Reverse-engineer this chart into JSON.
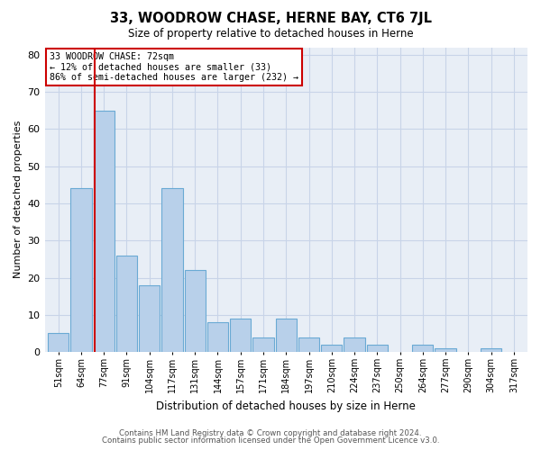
{
  "title": "33, WOODROW CHASE, HERNE BAY, CT6 7JL",
  "subtitle": "Size of property relative to detached houses in Herne",
  "xlabel": "Distribution of detached houses by size in Herne",
  "ylabel": "Number of detached properties",
  "categories": [
    "51sqm",
    "64sqm",
    "77sqm",
    "91sqm",
    "104sqm",
    "117sqm",
    "131sqm",
    "144sqm",
    "157sqm",
    "171sqm",
    "184sqm",
    "197sqm",
    "210sqm",
    "224sqm",
    "237sqm",
    "250sqm",
    "264sqm",
    "277sqm",
    "290sqm",
    "304sqm",
    "317sqm"
  ],
  "values": [
    5,
    44,
    65,
    26,
    18,
    44,
    22,
    8,
    9,
    4,
    9,
    4,
    2,
    4,
    2,
    0,
    2,
    1,
    0,
    1,
    0
  ],
  "bar_color": "#b8d0ea",
  "bar_edge_color": "#6aaad4",
  "grid_color": "#c8d4e8",
  "background_color": "#e8eef6",
  "annotation_line1": "33 WOODROW CHASE: 72sqm",
  "annotation_line2": "← 12% of detached houses are smaller (33)",
  "annotation_line3": "86% of semi-detached houses are larger (232) →",
  "vline_color": "#cc0000",
  "ylim": [
    0,
    82
  ],
  "yticks": [
    0,
    10,
    20,
    30,
    40,
    50,
    60,
    70,
    80
  ],
  "footer1": "Contains HM Land Registry data © Crown copyright and database right 2024.",
  "footer2": "Contains public sector information licensed under the Open Government Licence v3.0.",
  "bin_width": 13,
  "property_size": 72
}
